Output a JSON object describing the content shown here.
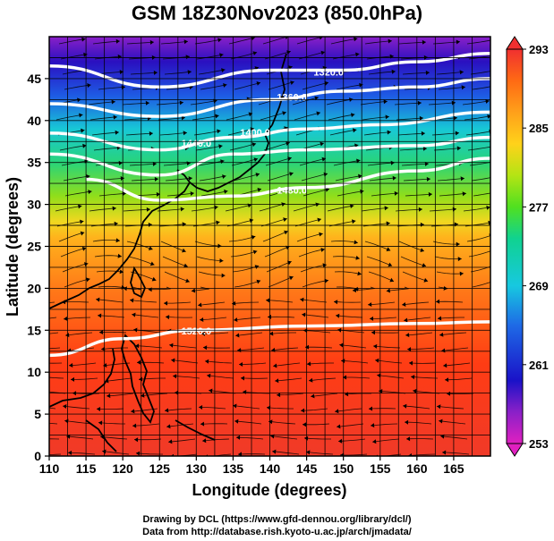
{
  "title": "GSM 18Z30Nov2023 (850.0hPa)",
  "axes": {
    "xlabel": "Longitude (degrees)",
    "ylabel": "Latitude  (degrees)",
    "xlim": [
      110,
      170
    ],
    "ylim": [
      0,
      50
    ],
    "xticks": [
      "110",
      "115",
      "120",
      "125",
      "130",
      "135",
      "140",
      "145",
      "150",
      "155",
      "160",
      "165"
    ],
    "yticks": [
      "0",
      "5",
      "10",
      "15",
      "20",
      "25",
      "30",
      "35",
      "40",
      "45"
    ],
    "grid": "on"
  },
  "colorbar": {
    "field": "temperature (K)",
    "labels": [
      "293",
      "285",
      "277",
      "269",
      "261",
      "253"
    ],
    "range": [
      253,
      293
    ],
    "colors": [
      "#e020c0",
      "#1a12c8",
      "#1e6ae6",
      "#17c8e0",
      "#10d290",
      "#50e020",
      "#b4e414",
      "#ffd21a",
      "#ffa01a",
      "#ff6a14",
      "#ff3c14",
      "#f03030"
    ]
  },
  "contours": [
    {
      "label": "1320.0",
      "lat_at_lon": [
        [
          110,
          46.5
        ],
        [
          125,
          44
        ],
        [
          140,
          46
        ],
        [
          150,
          46
        ],
        [
          160,
          47
        ],
        [
          170,
          48
        ]
      ]
    },
    {
      "label": "1360.0",
      "lat_at_lon": [
        [
          110,
          42
        ],
        [
          125,
          40.5
        ],
        [
          140,
          42.5
        ],
        [
          150,
          43.5
        ],
        [
          160,
          44
        ],
        [
          170,
          45
        ]
      ]
    },
    {
      "label": "1400.0",
      "lat_at_lon": [
        [
          110,
          38.5
        ],
        [
          125,
          36.5
        ],
        [
          135,
          38
        ],
        [
          145,
          39
        ],
        [
          155,
          39.5
        ],
        [
          170,
          41
        ]
      ]
    },
    {
      "label": "1440.0",
      "lat_at_lon": [
        [
          110,
          36
        ],
        [
          125,
          33.5
        ],
        [
          135,
          36
        ],
        [
          145,
          36.5
        ],
        [
          160,
          37
        ],
        [
          170,
          38
        ]
      ]
    },
    {
      "label": "1480.0",
      "lat_at_lon": [
        [
          115,
          33
        ],
        [
          125,
          30.5
        ],
        [
          135,
          31
        ],
        [
          145,
          32
        ],
        [
          160,
          34
        ],
        [
          170,
          35.5
        ]
      ]
    },
    {
      "label": "1520.0",
      "lat_at_lon": [
        [
          110,
          12
        ],
        [
          120,
          14
        ],
        [
          130,
          15
        ],
        [
          145,
          15.5
        ],
        [
          160,
          15.8
        ],
        [
          170,
          16
        ]
      ]
    }
  ],
  "contour_label_points": [
    {
      "text": "1320.0",
      "lon": 148,
      "lat": 45.8
    },
    {
      "text": "1360.0",
      "lon": 143,
      "lat": 42.8
    },
    {
      "text": "1400.0",
      "lon": 138,
      "lat": 38.6
    },
    {
      "text": "1440.0",
      "lon": 130,
      "lat": 37.3
    },
    {
      "text": "1480.0",
      "lon": 143,
      "lat": 31.7
    },
    {
      "text": "1520.0",
      "lon": 130,
      "lat": 14.9
    }
  ],
  "credits": {
    "line1": "Drawing by DCL (https://www.gfd-dennou.org/library/dcl/)",
    "line2": "Data from http://database.rish.kyoto-u.ac.jp/arch/jmadata/"
  }
}
